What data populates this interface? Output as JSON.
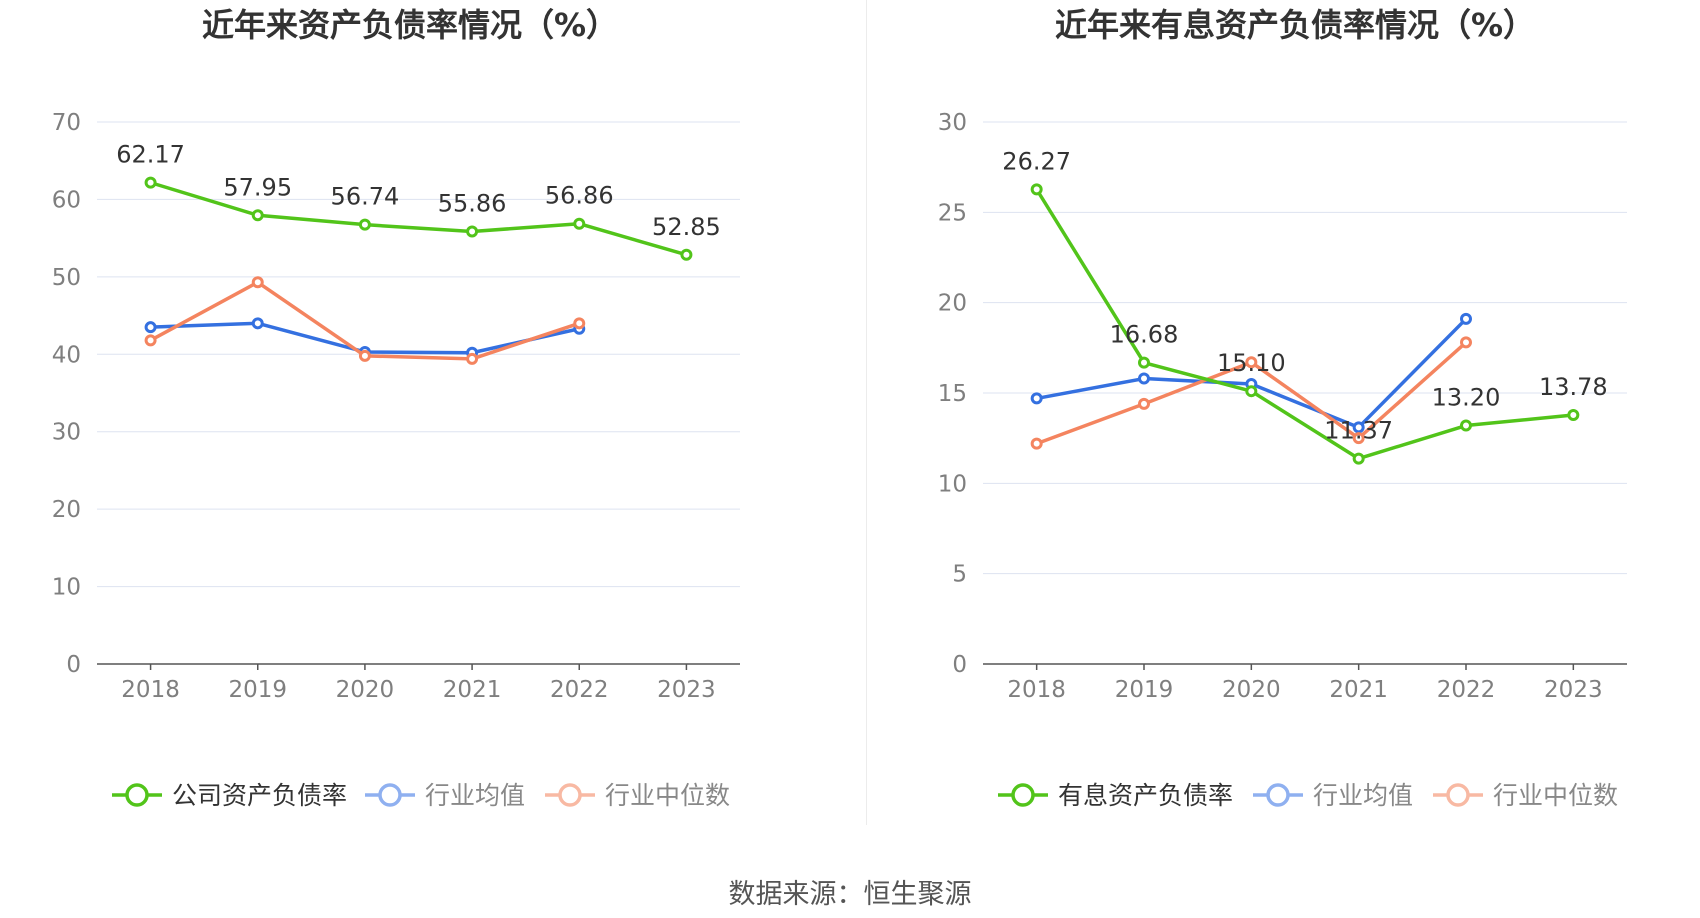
{
  "source": "数据来源：恒生聚源",
  "chart_data": [
    {
      "type": "line",
      "title": "近年来资产负债率情况（%）",
      "categories": [
        "2018",
        "2019",
        "2020",
        "2021",
        "2022",
        "2023"
      ],
      "ylim": [
        0,
        70
      ],
      "yticks": [
        0,
        10,
        20,
        30,
        40,
        50,
        60,
        70
      ],
      "grid": true,
      "legend_position": "bottom",
      "series": [
        {
          "name": "公司资产负债率",
          "color": "#52c41a",
          "show_labels": true,
          "values": [
            62.17,
            57.95,
            56.74,
            55.86,
            56.86,
            52.85
          ],
          "labels": [
            "62.17",
            "57.95",
            "56.74",
            "55.86",
            "56.86",
            "52.85"
          ]
        },
        {
          "name": "行业均值",
          "color": "#3470e0",
          "show_labels": false,
          "values": [
            43.5,
            44.0,
            40.3,
            40.2,
            43.3,
            null
          ]
        },
        {
          "name": "行业中位数",
          "color": "#f4845f",
          "show_labels": false,
          "values": [
            41.8,
            49.3,
            39.8,
            39.4,
            44.0,
            null
          ]
        }
      ]
    },
    {
      "type": "line",
      "title": "近年来有息资产负债率情况（%）",
      "categories": [
        "2018",
        "2019",
        "2020",
        "2021",
        "2022",
        "2023"
      ],
      "ylim": [
        0,
        30
      ],
      "yticks": [
        0,
        5,
        10,
        15,
        20,
        25,
        30
      ],
      "grid": true,
      "legend_position": "bottom",
      "series": [
        {
          "name": "有息资产负债率",
          "color": "#52c41a",
          "show_labels": true,
          "values": [
            26.27,
            16.68,
            15.1,
            11.37,
            13.2,
            13.78
          ],
          "labels": [
            "26.27",
            "16.68",
            "15.10",
            "11.37",
            "13.20",
            "13.78"
          ]
        },
        {
          "name": "行业均值",
          "color": "#3470e0",
          "show_labels": false,
          "values": [
            14.7,
            15.8,
            15.5,
            13.1,
            19.1,
            null
          ]
        },
        {
          "name": "行业中位数",
          "color": "#f4845f",
          "show_labels": false,
          "values": [
            12.2,
            14.4,
            16.7,
            12.5,
            17.8,
            null
          ]
        }
      ]
    }
  ]
}
